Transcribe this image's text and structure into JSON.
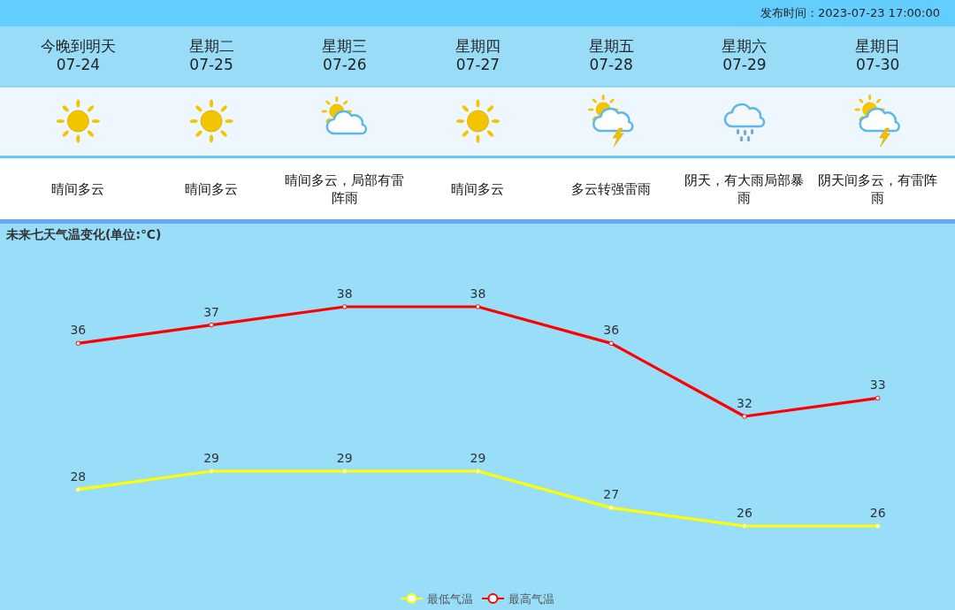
{
  "chart_data": [
    {
      "type": "other",
      "categories": [
        "今晚到明天",
        "星期二",
        "星期三",
        "星期四",
        "星期五",
        "星期六",
        "星期日"
      ],
      "annotations": [
        "发布时间：2023-07-23 17:00:00",
        "07-24",
        "07-25",
        "07-26",
        "07-27",
        "07-28",
        "07-29",
        "07-30",
        "晴间多云",
        "晴间多云",
        "晴间多云，局部有雷阵雨",
        "晴间多云",
        "多云转强雷雨",
        "阴天，有大雨局部暴雨",
        "阴天间多云，有雷阵雨"
      ]
    },
    {
      "type": "line",
      "title": "未来七天气温变化(单位:℃)",
      "categories": [
        null,
        null,
        null,
        null,
        null,
        null,
        null
      ],
      "series": [
        {
          "name": "最低气温",
          "color": "#ffff00",
          "values": [
            28,
            29,
            29,
            29,
            27,
            26,
            26
          ]
        },
        {
          "name": "最高气温",
          "color": "#ff0000",
          "values": [
            36,
            37,
            38,
            38,
            36,
            32,
            33
          ]
        }
      ],
      "data_labels": true,
      "legend": "bottom",
      "marker": "circle"
    }
  ]
}
